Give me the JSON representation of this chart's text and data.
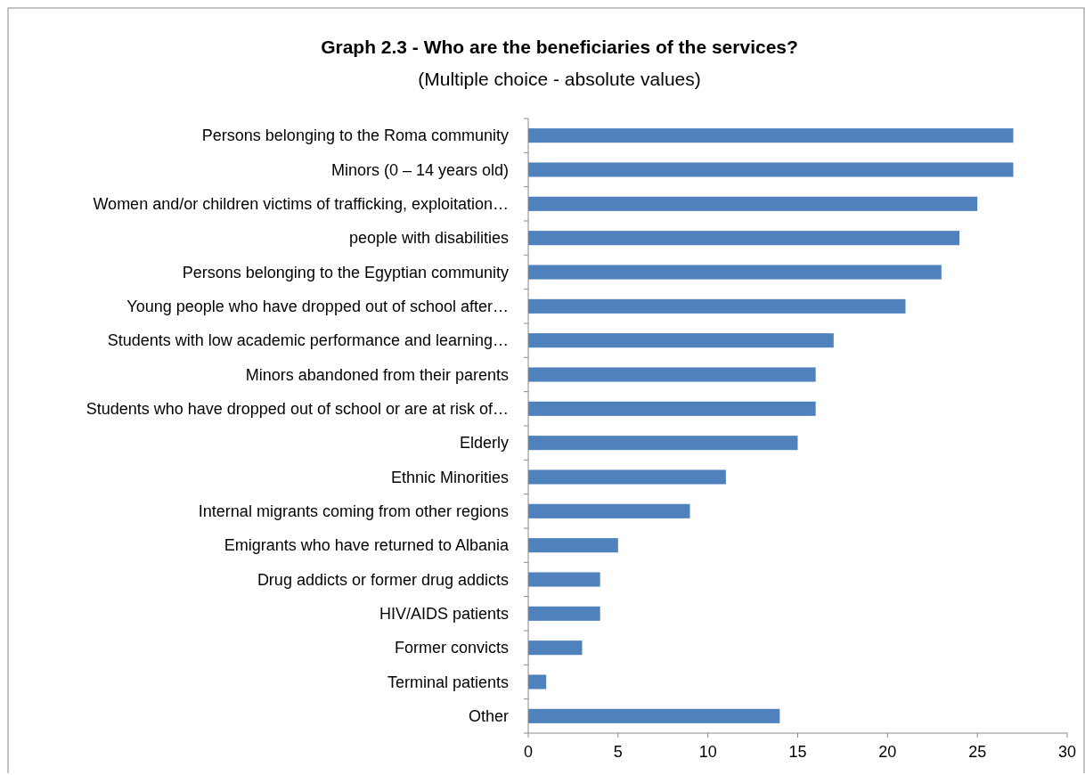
{
  "chart_data": {
    "type": "bar",
    "orientation": "horizontal",
    "title": "Graph 2.3 - Who are the beneficiaries of the services?",
    "subtitle": "(Multiple choice - absolute values)",
    "categories": [
      "Persons belonging to the Roma community",
      "Minors (0 – 14 years old)",
      "Women and/or children victims of trafficking, exploitation…",
      "people with disabilities",
      "Persons belonging to the Egyptian community",
      "Young people who have dropped out of school after…",
      "Students with low academic performance and learning…",
      "Minors abandoned from their parents",
      "Students who have dropped out of school or are at risk of…",
      "Elderly",
      "Ethnic Minorities",
      "Internal migrants coming from other regions",
      "Emigrants who have returned to Albania",
      "Drug addicts or former drug addicts",
      "HIV/AIDS patients",
      "Former convicts",
      "Terminal patients",
      "Other"
    ],
    "values": [
      27,
      27,
      25,
      24,
      23,
      21,
      17,
      16,
      16,
      15,
      11,
      9,
      5,
      4,
      4,
      3,
      1,
      14
    ],
    "color": "#4f81bd",
    "xlim": [
      0,
      30
    ],
    "xticks": [
      0,
      5,
      10,
      15,
      20,
      25,
      30
    ],
    "grid": false
  }
}
